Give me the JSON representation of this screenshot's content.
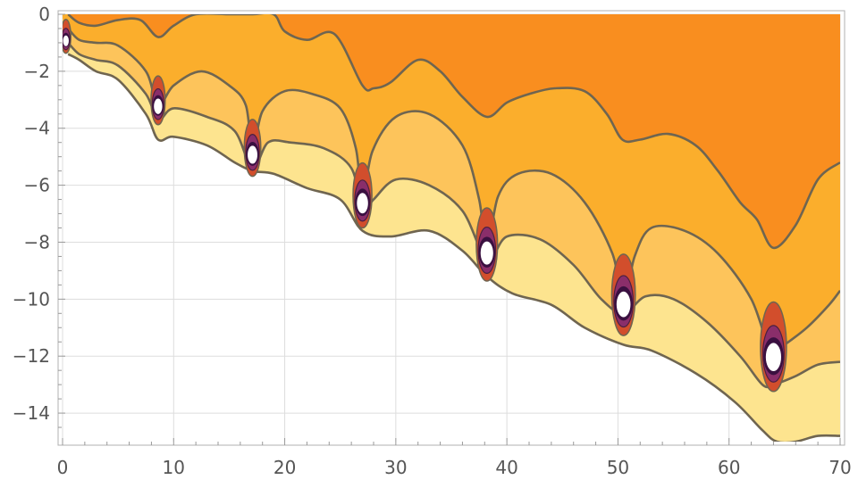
{
  "chart_data": {
    "type": "contour",
    "title": "",
    "xlabel": "",
    "ylabel": "",
    "xlim": [
      0,
      70
    ],
    "ylim": [
      -15,
      0
    ],
    "x_ticks": [
      0,
      10,
      20,
      30,
      40,
      50,
      60,
      70
    ],
    "y_ticks": [
      0,
      -2,
      -4,
      -6,
      -8,
      -10,
      -12,
      -14
    ],
    "x_tick_labels": [
      "0",
      "10",
      "20",
      "30",
      "40",
      "50",
      "60",
      "70"
    ],
    "y_tick_labels": [
      "0",
      "−2",
      "−4",
      "−6",
      "−8",
      "−10",
      "−12",
      "−14"
    ],
    "grid": true,
    "colors": {
      "band_0": "#f98e1f",
      "band_1": "#fbae2c",
      "band_2": "#fdc45b",
      "band_3": "#fde48f",
      "contour_line": "#6f6550",
      "grid": "#dddddd",
      "frame": "#b0b0b0",
      "singularity_inner": "#3a1040",
      "singularity_mid": "#8a2e6a",
      "singularity_outer": "#d24e2c"
    },
    "contours": [
      {
        "name": "c1",
        "x": [
          0.5,
          1.5,
          3,
          5,
          7,
          8.6,
          10,
          12,
          15,
          17,
          19,
          20,
          22,
          24.5,
          27,
          28,
          29.5,
          32,
          34,
          36,
          38.2,
          40,
          42,
          44.3,
          47,
          49,
          50.4,
          52,
          54.5,
          57,
          59,
          61,
          62.5,
          64,
          66,
          68,
          70
        ],
        "y": [
          0,
          -0.3,
          -0.4,
          -0.2,
          -0.2,
          -0.8,
          -0.4,
          0,
          0,
          0,
          0,
          -0.6,
          -0.9,
          -0.7,
          -2.5,
          -2.6,
          -2.4,
          -1.6,
          -2.0,
          -2.9,
          -3.6,
          -3.1,
          -2.8,
          -2.6,
          -2.7,
          -3.5,
          -4.4,
          -4.4,
          -4.2,
          -4.6,
          -5.5,
          -6.6,
          -7.2,
          -8.2,
          -7.4,
          -5.8,
          -5.2
        ]
      },
      {
        "name": "c2",
        "x": [
          0.5,
          1.5,
          3,
          5,
          7.5,
          8.6,
          10,
          12.5,
          15,
          16.5,
          17.1,
          18,
          20,
          22.5,
          25,
          26.4,
          27,
          27.9,
          30,
          33,
          36,
          37.5,
          38.2,
          39.2,
          41,
          44,
          47,
          49.5,
          50.5,
          51.5,
          53,
          56,
          59,
          62,
          63.8,
          65,
          67,
          69,
          70
        ],
        "y": [
          -0.5,
          -0.9,
          -1.0,
          -1.1,
          -2.0,
          -3.2,
          -2.5,
          -2.0,
          -2.5,
          -3.2,
          -4.8,
          -3.4,
          -2.7,
          -2.8,
          -3.3,
          -4.7,
          -6.5,
          -4.8,
          -3.6,
          -3.5,
          -4.6,
          -6.5,
          -8.3,
          -6.4,
          -5.6,
          -5.6,
          -6.6,
          -8.4,
          -10.1,
          -8.5,
          -7.5,
          -7.6,
          -8.4,
          -10.0,
          -11.9,
          -11.6,
          -11.0,
          -10.2,
          -9.7
        ]
      },
      {
        "name": "c3",
        "x": [
          0.5,
          1.5,
          3,
          5,
          7.5,
          8.6,
          10,
          13,
          15.5,
          17.1,
          18.5,
          20.5,
          23.5,
          26,
          27,
          28,
          30,
          33,
          36,
          38.2,
          40,
          43,
          46,
          48.5,
          50.5,
          52.5,
          55,
          58,
          61,
          63,
          64,
          66,
          68,
          70
        ],
        "y": [
          -1.0,
          -1.4,
          -1.6,
          -1.8,
          -2.8,
          -3.7,
          -3.3,
          -3.6,
          -4.1,
          -5.4,
          -4.5,
          -4.5,
          -4.7,
          -5.4,
          -6.9,
          -6.5,
          -5.8,
          -6.0,
          -6.9,
          -8.6,
          -7.8,
          -7.9,
          -8.8,
          -10.0,
          -10.5,
          -9.9,
          -10.0,
          -10.8,
          -12.0,
          -13.0,
          -13.0,
          -12.7,
          -12.3,
          -12.2
        ]
      },
      {
        "name": "c4",
        "x": [
          0.5,
          1.5,
          3,
          5,
          7.5,
          8.6,
          10,
          13,
          15.5,
          17.1,
          19,
          22,
          25,
          27,
          29.5,
          33,
          36,
          38.2,
          40.5,
          44,
          47,
          50.5,
          53,
          57,
          60.5,
          63,
          64.3,
          66,
          68,
          70
        ],
        "y": [
          -1.4,
          -1.6,
          -2.0,
          -2.3,
          -3.5,
          -4.4,
          -4.3,
          -4.6,
          -5.2,
          -5.5,
          -5.6,
          -6.1,
          -6.5,
          -7.6,
          -7.8,
          -7.6,
          -8.3,
          -9.2,
          -9.8,
          -10.2,
          -11.0,
          -11.6,
          -11.8,
          -12.6,
          -13.6,
          -14.6,
          -15.0,
          -15.0,
          -14.8,
          -14.8
        ]
      }
    ],
    "singularities": [
      {
        "x": 0.3,
        "y": -0.9
      },
      {
        "x": 8.6,
        "y": -3.2
      },
      {
        "x": 17.1,
        "y": -4.9
      },
      {
        "x": 27.0,
        "y": -6.6
      },
      {
        "x": 38.2,
        "y": -8.35
      },
      {
        "x": 50.5,
        "y": -10.15
      },
      {
        "x": 64.0,
        "y": -12.0
      }
    ]
  }
}
